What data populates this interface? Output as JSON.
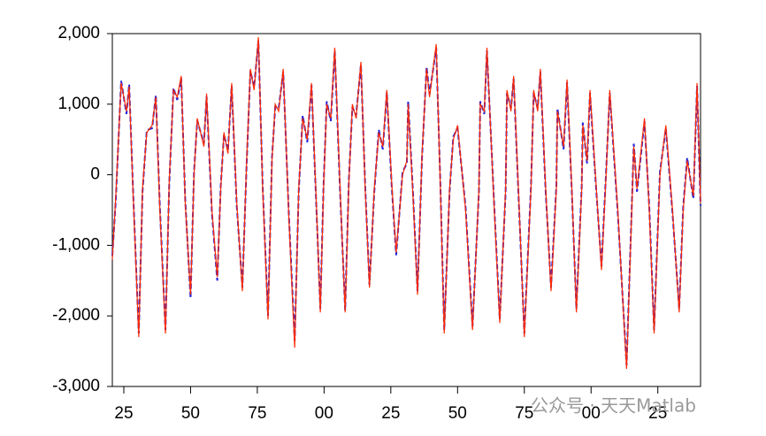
{
  "chart_data": {
    "type": "line",
    "x": [
      20.7,
      22,
      24,
      26,
      27,
      28.5,
      30.6,
      32,
      33.6,
      35.6,
      37,
      38.5,
      40.6,
      42,
      43.6,
      45,
      46.5,
      48,
      50,
      51.3,
      52.5,
      55,
      56,
      58,
      60,
      61.3,
      62.5,
      64,
      65.4,
      67.3,
      69.4,
      71,
      72.4,
      73.8,
      75.4,
      77,
      79,
      80.5,
      81.7,
      83,
      84.7,
      86.8,
      89,
      90.5,
      92,
      93.7,
      95.3,
      97,
      98.6,
      99.8,
      101,
      102.5,
      104,
      106,
      107.9,
      109.3,
      110.6,
      112,
      113.8,
      115.4,
      117,
      118.8,
      120.5,
      122,
      123.5,
      125.3,
      127,
      129.4,
      131,
      131.5,
      133.3,
      135,
      136.7,
      138.4,
      139.5,
      142,
      143.5,
      145,
      147,
      148.4,
      150,
      153,
      155.6,
      158,
      158.5,
      160,
      161,
      163.5,
      165.8,
      168,
      168.5,
      170,
      171,
      173,
      175,
      177.5,
      178.5,
      180,
      181,
      183,
      185,
      187,
      187.4,
      189.7,
      191,
      192.8,
      194.5,
      196.5,
      196.9,
      198.5,
      199.6,
      201.8,
      203.9,
      205.5,
      207,
      210,
      213.3,
      215.5,
      216,
      217.2,
      220,
      221.8,
      223.6,
      225.8,
      228,
      230.5,
      233,
      234.5,
      236,
      238.3,
      239.7,
      241
    ],
    "series": [
      {
        "color": "#2222dd",
        "dashed": true,
        "values": [
          -1150,
          -350,
          1330,
          860,
          1280,
          -260,
          -2250,
          -240,
          630,
          660,
          1130,
          -460,
          -2200,
          -140,
          1230,
          1060,
          1370,
          -360,
          -1750,
          40,
          770,
          440,
          1110,
          -540,
          -1500,
          -160,
          570,
          340,
          1260,
          -440,
          -1600,
          160,
          1470,
          1240,
          1900,
          -160,
          -2000,
          240,
          960,
          940,
          1460,
          -560,
          -2350,
          -240,
          840,
          460,
          1270,
          -340,
          -1900,
          -160,
          1040,
          760,
          1760,
          -240,
          -1920,
          -60,
          960,
          840,
          1560,
          -160,
          -1560,
          -240,
          640,
          360,
          1170,
          -140,
          -1140,
          40,
          160,
          1040,
          -260,
          -1650,
          260,
          1530,
          1140,
          1800,
          -60,
          -2200,
          -240,
          540,
          660,
          -460,
          -2150,
          -240,
          1040,
          860,
          1760,
          -260,
          -2050,
          -240,
          1160,
          940,
          1360,
          -440,
          -2250,
          -160,
          1160,
          940,
          1460,
          -240,
          -1600,
          -160,
          940,
          360,
          1310,
          -240,
          -1900,
          -160,
          740,
          160,
          1160,
          -140,
          -1300,
          -60,
          1160,
          -540,
          -2700,
          -160,
          440,
          -240,
          760,
          -460,
          -2200,
          40,
          660,
          -540,
          -1900,
          -460,
          240,
          -340,
          1260,
          -440
        ]
      },
      {
        "color": "#ff2a00",
        "dashed": false,
        "values": [
          -1200,
          -300,
          1300,
          900,
          1250,
          -300,
          -2300,
          -200,
          600,
          700,
          1100,
          -500,
          -2250,
          -100,
          1200,
          1100,
          1400,
          -400,
          -1700,
          0,
          800,
          400,
          1150,
          -500,
          -1450,
          -200,
          600,
          300,
          1300,
          -400,
          -1650,
          200,
          1500,
          1200,
          1950,
          -200,
          -2050,
          200,
          1000,
          900,
          1500,
          -600,
          -2450,
          -200,
          800,
          500,
          1300,
          -300,
          -1950,
          -200,
          1000,
          800,
          1800,
          -200,
          -1950,
          -100,
          1000,
          800,
          1600,
          -200,
          -1600,
          -200,
          600,
          400,
          1200,
          -100,
          -1100,
          0,
          200,
          1000,
          -300,
          -1700,
          300,
          1500,
          1100,
          1850,
          -100,
          -2250,
          -200,
          500,
          700,
          -500,
          -2200,
          -200,
          1000,
          900,
          1800,
          -300,
          -2100,
          -200,
          1200,
          900,
          1400,
          -400,
          -2300,
          -200,
          1200,
          900,
          1500,
          -200,
          -1650,
          -200,
          900,
          400,
          1350,
          -200,
          -1950,
          -200,
          700,
          200,
          1200,
          -100,
          -1350,
          -100,
          1200,
          -500,
          -2750,
          -200,
          400,
          -200,
          800,
          -500,
          -2250,
          0,
          700,
          -500,
          -1950,
          -500,
          200,
          -300,
          1300,
          -400
        ]
      }
    ],
    "xlim": [
      20.7,
      241
    ],
    "ylim": [
      -3000,
      2000
    ],
    "xticks": [
      {
        "value": 25,
        "label": "25"
      },
      {
        "value": 50,
        "label": "50"
      },
      {
        "value": 75,
        "label": "75"
      },
      {
        "value": 100,
        "label": "00"
      },
      {
        "value": 125,
        "label": "25"
      },
      {
        "value": 150,
        "label": "50"
      },
      {
        "value": 175,
        "label": "75"
      },
      {
        "value": 200,
        "label": "00"
      },
      {
        "value": 225,
        "label": "25"
      }
    ],
    "yticks": [
      {
        "value": 2000,
        "label": "2,000"
      },
      {
        "value": 1000,
        "label": "1,000"
      },
      0,
      {
        "value": -1000,
        "label": "-1,000"
      },
      {
        "value": -2000,
        "label": "-2,000"
      },
      {
        "value": -3000,
        "label": "-3,000"
      }
    ],
    "grid": false,
    "watermark": "公众号 · 天天Matlab"
  }
}
